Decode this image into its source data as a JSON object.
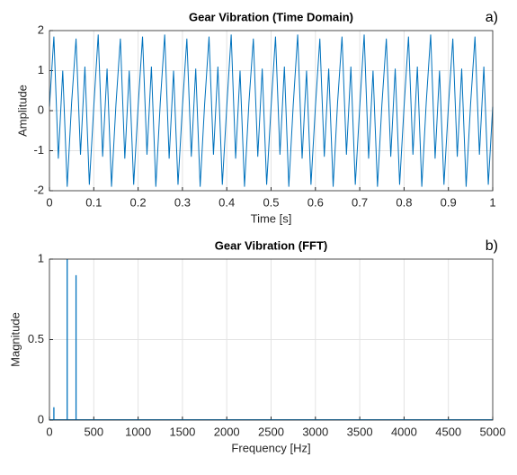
{
  "chart_data": [
    {
      "type": "line",
      "title": "Gear Vibration (Time Domain)",
      "panel_label": "a)",
      "xlabel": "Time [s]",
      "ylabel": "Amplitude",
      "xlim": [
        0,
        1
      ],
      "ylim": [
        -2,
        2
      ],
      "xticks": [
        0,
        0.1,
        0.2,
        0.3,
        0.4,
        0.5,
        0.6,
        0.7,
        0.8,
        0.9,
        1
      ],
      "yticks": [
        -2,
        -1,
        0,
        1,
        2
      ],
      "grid": true,
      "x": [
        0,
        0.01,
        0.02,
        0.03,
        0.04,
        0.05,
        0.06,
        0.07,
        0.08,
        0.09,
        0.1,
        0.11,
        0.12,
        0.13,
        0.14,
        0.15,
        0.16,
        0.17,
        0.18,
        0.19,
        0.2,
        0.21,
        0.22,
        0.23,
        0.24,
        0.25,
        0.26,
        0.27,
        0.28,
        0.29,
        0.3,
        0.31,
        0.32,
        0.33,
        0.34,
        0.35,
        0.36,
        0.37,
        0.38,
        0.39,
        0.4,
        0.41,
        0.42,
        0.43,
        0.44,
        0.45,
        0.46,
        0.47,
        0.48,
        0.49,
        0.5,
        0.51,
        0.52,
        0.53,
        0.54,
        0.55,
        0.56,
        0.57,
        0.58,
        0.59,
        0.6,
        0.61,
        0.62,
        0.63,
        0.64,
        0.65,
        0.66,
        0.67,
        0.68,
        0.69,
        0.7,
        0.71,
        0.72,
        0.73,
        0.74,
        0.75,
        0.76,
        0.77,
        0.78,
        0.79,
        0.8,
        0.81,
        0.82,
        0.83,
        0.84,
        0.85,
        0.86,
        0.87,
        0.88,
        0.89,
        0.9,
        0.91,
        0.92,
        0.93,
        0.94,
        0.95,
        0.96,
        0.97,
        0.98,
        0.99,
        1
      ],
      "series": [
        {
          "color": "#0072bd",
          "values": [
            0.1,
            1.85,
            -1.2,
            1.0,
            -1.9,
            0.2,
            1.8,
            -1.1,
            1.1,
            -1.85,
            0.1,
            1.9,
            -1.15,
            1.05,
            -1.9,
            0.15,
            1.8,
            -1.2,
            1.0,
            -1.85,
            0.1,
            1.85,
            -1.1,
            1.1,
            -1.9,
            0.2,
            1.9,
            -1.2,
            1.0,
            -1.85,
            0.1,
            1.8,
            -1.15,
            1.05,
            -1.9,
            0.15,
            1.85,
            -1.1,
            1.1,
            -1.85,
            0.1,
            1.9,
            -1.2,
            1.0,
            -1.9,
            0.2,
            1.8,
            -1.15,
            1.05,
            -1.85,
            0.1,
            1.85,
            -1.1,
            1.1,
            -1.9,
            0.15,
            1.9,
            -1.2,
            1.0,
            -1.85,
            0.1,
            1.8,
            -1.15,
            1.05,
            -1.9,
            0.2,
            1.85,
            -1.1,
            1.1,
            -1.85,
            0.1,
            1.9,
            -1.2,
            1.0,
            -1.9,
            0.15,
            1.8,
            -1.15,
            1.05,
            -1.85,
            0.1,
            1.85,
            -1.1,
            1.1,
            -1.9,
            0.2,
            1.9,
            -1.2,
            1.0,
            -1.85,
            0.1,
            1.8,
            -1.15,
            1.05,
            -1.9,
            0.15,
            1.85,
            -1.1,
            1.1,
            -1.85,
            0.1
          ]
        }
      ]
    },
    {
      "type": "stem",
      "title": "Gear Vibration (FFT)",
      "panel_label": "b)",
      "xlabel": "Frequency [Hz]",
      "ylabel": "Magnitude",
      "xlim": [
        0,
        5000
      ],
      "ylim": [
        0,
        1
      ],
      "xticks": [
        0,
        500,
        1000,
        1500,
        2000,
        2500,
        3000,
        3500,
        4000,
        4500,
        5000
      ],
      "yticks": [
        0,
        0.5,
        1
      ],
      "grid": true,
      "x": [
        50,
        200,
        300
      ],
      "series": [
        {
          "color": "#0072bd",
          "values": [
            0.08,
            1,
            0.9
          ]
        }
      ]
    }
  ]
}
